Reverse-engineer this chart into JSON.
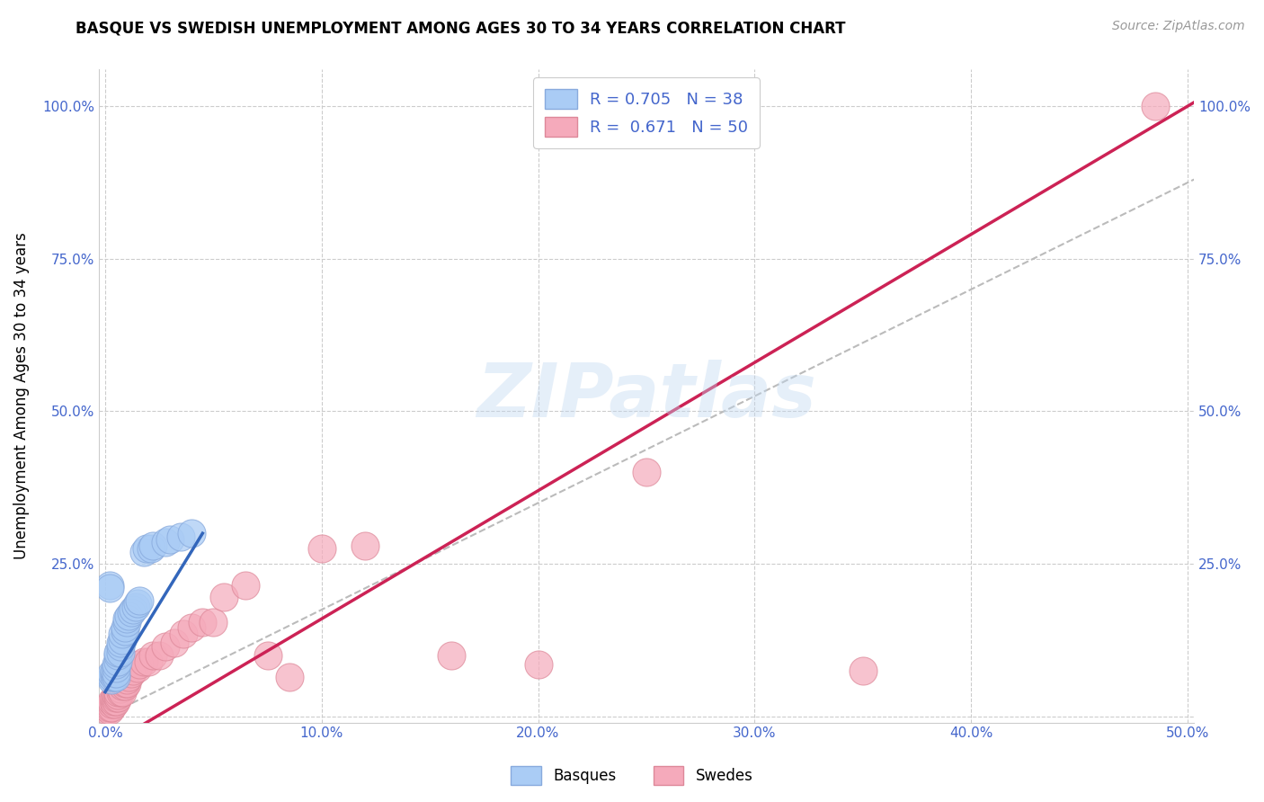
{
  "title": "BASQUE VS SWEDISH UNEMPLOYMENT AMONG AGES 30 TO 34 YEARS CORRELATION CHART",
  "source": "Source: ZipAtlas.com",
  "ylabel": "Unemployment Among Ages 30 to 34 years",
  "xlim": [
    -0.003,
    0.503
  ],
  "ylim": [
    -0.01,
    1.06
  ],
  "xticks": [
    0.0,
    0.1,
    0.2,
    0.3,
    0.4,
    0.5
  ],
  "yticks": [
    0.0,
    0.25,
    0.5,
    0.75,
    1.0
  ],
  "xticklabels": [
    "0.0%",
    "10.0%",
    "20.0%",
    "30.0%",
    "40.0%",
    "50.0%"
  ],
  "left_yticklabels": [
    "",
    "25.0%",
    "50.0%",
    "75.0%",
    "100.0%"
  ],
  "right_yticklabels": [
    "",
    "25.0%",
    "50.0%",
    "75.0%",
    "100.0%"
  ],
  "basque_R": 0.705,
  "basque_N": 38,
  "swede_R": 0.671,
  "swede_N": 50,
  "basque_color": "#aaccf5",
  "basque_edge_color": "#88aadd",
  "basque_line_color": "#3366bb",
  "swede_color": "#f5aabb",
  "swede_edge_color": "#dd8899",
  "swede_line_color": "#cc2255",
  "ref_line_color": "#bbbbbb",
  "watermark": "ZIPatlas",
  "grid_color": "#cccccc",
  "tick_color": "#4466cc",
  "basque_x": [
    0.002,
    0.002,
    0.003,
    0.003,
    0.003,
    0.004,
    0.004,
    0.004,
    0.005,
    0.005,
    0.005,
    0.005,
    0.006,
    0.006,
    0.006,
    0.007,
    0.007,
    0.007,
    0.008,
    0.008,
    0.009,
    0.009,
    0.01,
    0.01,
    0.011,
    0.012,
    0.013,
    0.014,
    0.015,
    0.016,
    0.018,
    0.019,
    0.021,
    0.022,
    0.028,
    0.03,
    0.035,
    0.04
  ],
  "basque_y": [
    0.215,
    0.21,
    0.06,
    0.065,
    0.07,
    0.065,
    0.07,
    0.075,
    0.065,
    0.07,
    0.08,
    0.085,
    0.09,
    0.1,
    0.105,
    0.105,
    0.115,
    0.12,
    0.125,
    0.135,
    0.14,
    0.145,
    0.155,
    0.16,
    0.165,
    0.17,
    0.175,
    0.18,
    0.185,
    0.19,
    0.27,
    0.275,
    0.275,
    0.28,
    0.285,
    0.29,
    0.295,
    0.3
  ],
  "swede_x": [
    0.001,
    0.001,
    0.002,
    0.002,
    0.003,
    0.003,
    0.003,
    0.004,
    0.004,
    0.004,
    0.005,
    0.005,
    0.005,
    0.006,
    0.006,
    0.006,
    0.007,
    0.007,
    0.008,
    0.008,
    0.009,
    0.009,
    0.01,
    0.01,
    0.011,
    0.012,
    0.013,
    0.015,
    0.016,
    0.018,
    0.02,
    0.022,
    0.025,
    0.028,
    0.032,
    0.036,
    0.04,
    0.045,
    0.05,
    0.055,
    0.065,
    0.075,
    0.085,
    0.1,
    0.12,
    0.16,
    0.2,
    0.25,
    0.35,
    0.485
  ],
  "swede_y": [
    0.01,
    0.015,
    0.01,
    0.015,
    0.015,
    0.02,
    0.025,
    0.02,
    0.025,
    0.03,
    0.025,
    0.03,
    0.035,
    0.03,
    0.035,
    0.04,
    0.04,
    0.045,
    0.04,
    0.05,
    0.05,
    0.055,
    0.055,
    0.06,
    0.065,
    0.07,
    0.075,
    0.08,
    0.085,
    0.09,
    0.09,
    0.1,
    0.1,
    0.115,
    0.12,
    0.135,
    0.145,
    0.155,
    0.155,
    0.195,
    0.215,
    0.1,
    0.065,
    0.275,
    0.28,
    0.1,
    0.085,
    0.4,
    0.075,
    1.0
  ],
  "basque_line_x": [
    0.0,
    0.045
  ],
  "swede_line_x": [
    -0.005,
    0.503
  ],
  "ref_line_x": [
    0.0,
    0.503
  ],
  "ref_line_y": [
    0.0,
    0.88
  ]
}
